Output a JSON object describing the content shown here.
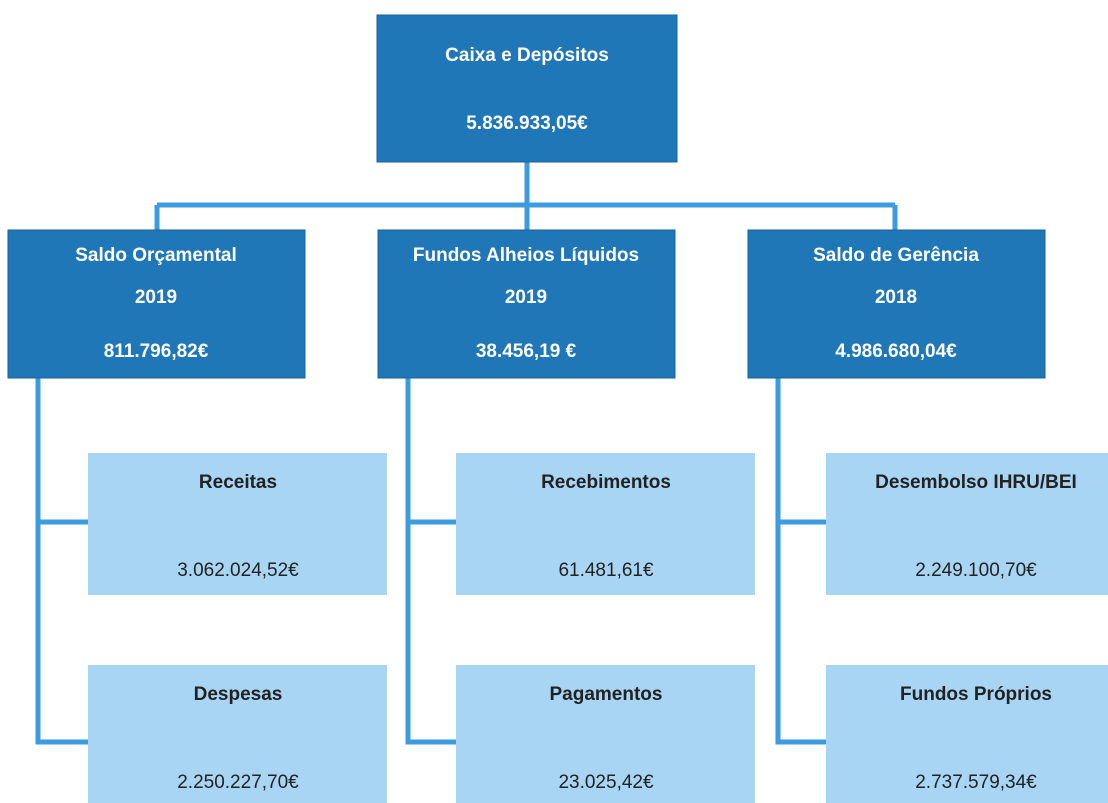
{
  "root": {
    "label": "Caixa e Depósitos",
    "value": "5.836.933,05€"
  },
  "groups": [
    {
      "label": "Saldo Orçamental",
      "year": "2019",
      "value": "811.796,82€",
      "children": [
        {
          "label": "Receitas",
          "value": "3.062.024,52€"
        },
        {
          "label": "Despesas",
          "value": "2.250.227,70€"
        }
      ]
    },
    {
      "label": "Fundos Alheios Líquidos",
      "year": "2019",
      "value": "38.456,19 €",
      "children": [
        {
          "label": "Recebimentos",
          "value": "61.481,61€"
        },
        {
          "label": "Pagamentos",
          "value": "23.025,42€"
        }
      ]
    },
    {
      "label": "Saldo de Gerência",
      "year": "2018",
      "value": "4.986.680,04€",
      "children": [
        {
          "label": "Desembolso IHRU/BEI",
          "value": "2.249.100,70€"
        },
        {
          "label": "Fundos Próprios",
          "value": "2.737.579,34€"
        }
      ]
    }
  ]
}
